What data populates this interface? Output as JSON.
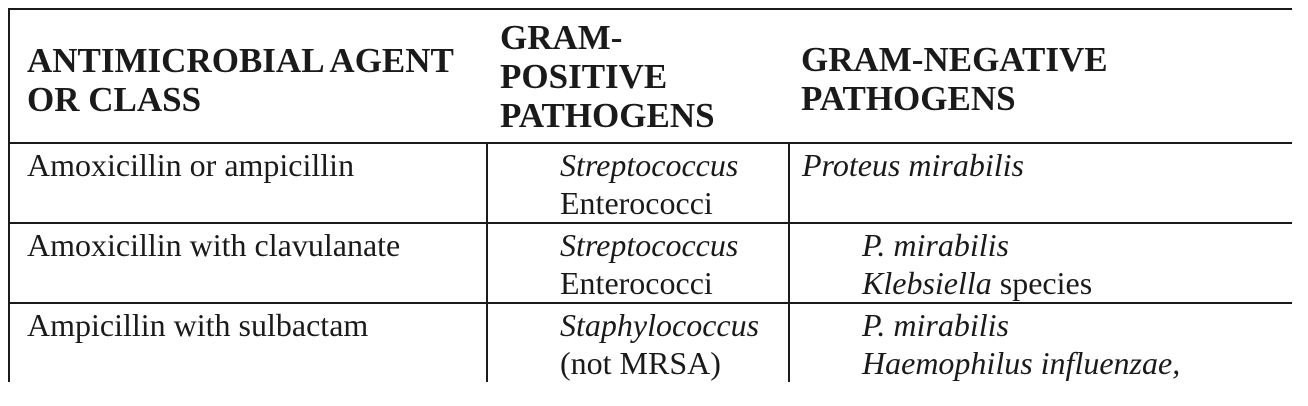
{
  "table": {
    "headers": {
      "agent": [
        "ANTIMICROBIAL AGENT",
        "OR CLASS"
      ],
      "gram_positive": [
        "GRAM-",
        "POSITIVE",
        "PATHOGENS"
      ],
      "gram_negative": [
        "GRAM-NEGATIVE",
        "PATHOGENS"
      ]
    },
    "rows": [
      {
        "agent": "Amoxicillin or ampicillin",
        "gram_positive": [
          {
            "text": "Streptococcus",
            "italic": true
          },
          {
            "text": "Enterococci",
            "italic": false
          }
        ],
        "gram_negative": [
          {
            "parts": [
              {
                "text": "Proteus mirabilis",
                "italic": true
              }
            ]
          }
        ]
      },
      {
        "agent": "Amoxicillin with clavulanate",
        "gram_positive": [
          {
            "text": "Streptococcus",
            "italic": true
          },
          {
            "text": "Enterococci",
            "italic": false
          }
        ],
        "gram_negative": [
          {
            "parts": [
              {
                "text": "P. mirabilis",
                "italic": true
              }
            ]
          },
          {
            "parts": [
              {
                "text": "Klebsiella",
                "italic": true
              },
              {
                "text": " species",
                "italic": false
              }
            ]
          }
        ]
      },
      {
        "agent": "Ampicillin with sulbactam",
        "gram_positive": [
          {
            "text": "Staphylococcus",
            "italic": true
          },
          {
            "text": "(not MRSA)",
            "italic": false
          }
        ],
        "gram_negative": [
          {
            "parts": [
              {
                "text": "P. mirabilis",
                "italic": true
              }
            ]
          },
          {
            "parts": [
              {
                "text": "Haemophilus influenzae,",
                "italic": true
              }
            ]
          }
        ]
      }
    ]
  }
}
